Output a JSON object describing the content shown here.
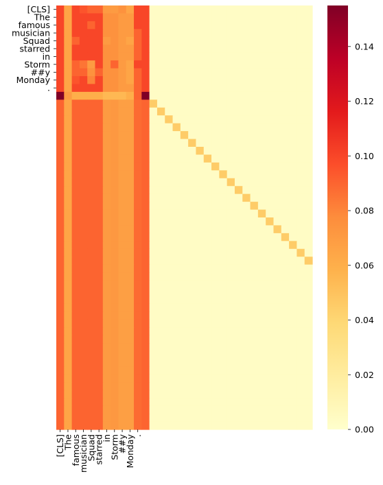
{
  "chart_data": {
    "type": "heatmap",
    "title": "",
    "xlabel": "",
    "ylabel": "",
    "x_labels": [
      "[CLS]",
      "The",
      "famous",
      "musician",
      "Squad",
      "starred",
      "in",
      "Storm",
      "##y",
      "Monday",
      "."
    ],
    "y_labels": [
      "[CLS]",
      "The",
      "famous",
      "musician",
      "Squad",
      "starred",
      "in",
      "Storm",
      "##y",
      "Monday",
      "."
    ],
    "n_rows": 54,
    "n_cols": 33,
    "value_range": [
      0.0,
      0.155
    ],
    "colormap": "YlOrRd",
    "colorbar": {
      "ticks": [
        0.0,
        0.02,
        0.04,
        0.06,
        0.08,
        0.1,
        0.12,
        0.14
      ],
      "tick_labels": [
        "0.00",
        "0.02",
        "0.04",
        "0.06",
        "0.08",
        "0.10",
        "0.12",
        "0.14"
      ]
    },
    "cell_values": {
      "header_rows_0_to_10": [
        [
          0.1,
          0.065,
          0.1,
          0.095,
          0.09,
          0.09,
          0.07,
          0.07,
          0.075,
          0.065,
          0.1,
          0.1
        ],
        [
          0.1,
          0.065,
          0.1,
          0.1,
          0.1,
          0.1,
          0.075,
          0.075,
          0.07,
          0.07,
          0.1,
          0.1
        ],
        [
          0.1,
          0.065,
          0.1,
          0.1,
          0.09,
          0.1,
          0.075,
          0.075,
          0.07,
          0.07,
          0.1,
          0.1
        ],
        [
          0.1,
          0.065,
          0.1,
          0.1,
          0.1,
          0.1,
          0.075,
          0.075,
          0.07,
          0.07,
          0.09,
          0.1
        ],
        [
          0.1,
          0.065,
          0.09,
          0.1,
          0.1,
          0.1,
          0.07,
          0.075,
          0.07,
          0.065,
          0.09,
          0.1
        ],
        [
          0.1,
          0.065,
          0.1,
          0.1,
          0.1,
          0.1,
          0.075,
          0.075,
          0.07,
          0.07,
          0.09,
          0.1
        ],
        [
          0.1,
          0.065,
          0.1,
          0.1,
          0.1,
          0.1,
          0.075,
          0.075,
          0.07,
          0.07,
          0.09,
          0.1
        ],
        [
          0.1,
          0.065,
          0.09,
          0.085,
          0.07,
          0.1,
          0.075,
          0.09,
          0.07,
          0.065,
          0.1,
          0.1
        ],
        [
          0.1,
          0.065,
          0.09,
          0.09,
          0.075,
          0.09,
          0.075,
          0.075,
          0.07,
          0.065,
          0.09,
          0.1
        ],
        [
          0.1,
          0.065,
          0.095,
          0.1,
          0.08,
          0.1,
          0.075,
          0.075,
          0.07,
          0.065,
          0.09,
          0.1
        ],
        [
          0.1,
          0.065,
          0.1,
          0.1,
          0.1,
          0.1,
          0.075,
          0.075,
          0.07,
          0.07,
          0.09,
          0.1
        ]
      ],
      "cls_row_11": [
        0.155,
        0.07,
        0.06,
        0.06,
        0.06,
        0.06,
        0.055,
        0.055,
        0.055,
        0.06,
        0.09,
        0.155
      ],
      "body_row_profile": [
        0.09,
        0.065,
        0.09,
        0.09,
        0.09,
        0.09,
        0.07,
        0.072,
        0.068,
        0.068,
        0.088,
        0.09
      ],
      "background": 0.003,
      "diagonal_from_row_12_col_12": 0.045
    }
  }
}
